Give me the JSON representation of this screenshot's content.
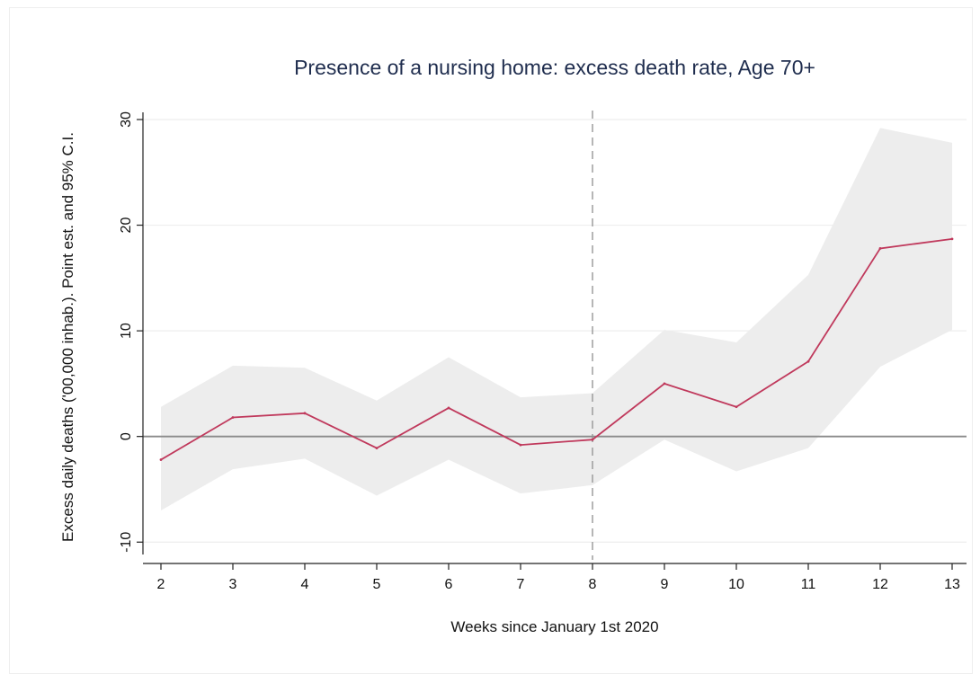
{
  "chart_data": {
    "type": "line",
    "title": "Presence of a nursing home: excess death rate, Age 70+",
    "xlabel": "Weeks since January 1st 2020",
    "ylabel": "Excess daily deaths ('00,000 inhab.). Point est. and 95% C.I.",
    "x": [
      2,
      3,
      4,
      5,
      6,
      7,
      8,
      9,
      10,
      11,
      12,
      13
    ],
    "xlim": [
      2,
      13
    ],
    "ylim": [
      -11,
      30
    ],
    "yticks": [
      -10,
      0,
      10,
      20,
      30
    ],
    "series": [
      {
        "values": [
          -2.2,
          1.8,
          2.2,
          -1.1,
          2.7,
          -0.8,
          -0.3,
          5.0,
          2.8,
          7.1,
          17.8,
          18.7
        ],
        "ci_lower": [
          -7.0,
          -3.1,
          -2.1,
          -5.6,
          -2.2,
          -5.4,
          -4.6,
          -0.3,
          -3.3,
          -1.1,
          6.6,
          10.1
        ],
        "ci_upper": [
          2.8,
          6.7,
          6.5,
          3.4,
          7.5,
          3.7,
          4.1,
          10.1,
          8.9,
          15.3,
          29.2,
          27.8
        ]
      }
    ],
    "reference_lines": {
      "horizontal_y": 0,
      "vertical_x": 8
    },
    "grid": true,
    "colors": {
      "line": "#c0395c",
      "ci_band": "#ededed",
      "grid": "#eeeeee",
      "zero_line": "#8a8a8a",
      "vline": "#8f8f8f",
      "title": "#1f2d4e"
    }
  }
}
